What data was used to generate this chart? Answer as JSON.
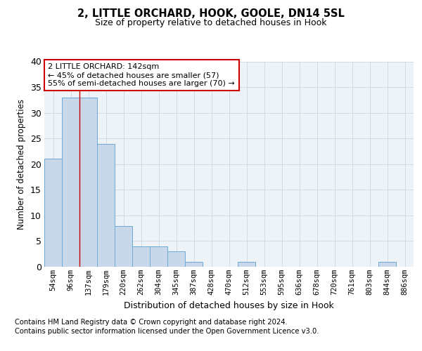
{
  "title1": "2, LITTLE ORCHARD, HOOK, GOOLE, DN14 5SL",
  "title2": "Size of property relative to detached houses in Hook",
  "xlabel": "Distribution of detached houses by size in Hook",
  "ylabel": "Number of detached properties",
  "bin_labels": [
    "54sqm",
    "96sqm",
    "137sqm",
    "179sqm",
    "220sqm",
    "262sqm",
    "304sqm",
    "345sqm",
    "387sqm",
    "428sqm",
    "470sqm",
    "512sqm",
    "553sqm",
    "595sqm",
    "636sqm",
    "678sqm",
    "720sqm",
    "761sqm",
    "803sqm",
    "844sqm",
    "886sqm"
  ],
  "bar_heights": [
    21,
    33,
    33,
    24,
    8,
    4,
    4,
    3,
    1,
    0,
    0,
    1,
    0,
    0,
    0,
    0,
    0,
    0,
    0,
    1,
    0
  ],
  "bar_color": "#c8d8ea",
  "bar_edge_color": "#6aaad4",
  "grid_color": "#c8d8e8",
  "background_color": "#eef3f8",
  "vline_color": "#cc0000",
  "annotation_text": "2 LITTLE ORCHARD: 142sqm\n← 45% of detached houses are smaller (57)\n55% of semi-detached houses are larger (70) →",
  "annotation_box_color": "#ffffff",
  "annotation_box_edge": "#cc0000",
  "footer_line1": "Contains HM Land Registry data © Crown copyright and database right 2024.",
  "footer_line2": "Contains public sector information licensed under the Open Government Licence v3.0.",
  "ylim": [
    0,
    40
  ],
  "yticks": [
    0,
    5,
    10,
    15,
    20,
    25,
    30,
    35,
    40
  ]
}
